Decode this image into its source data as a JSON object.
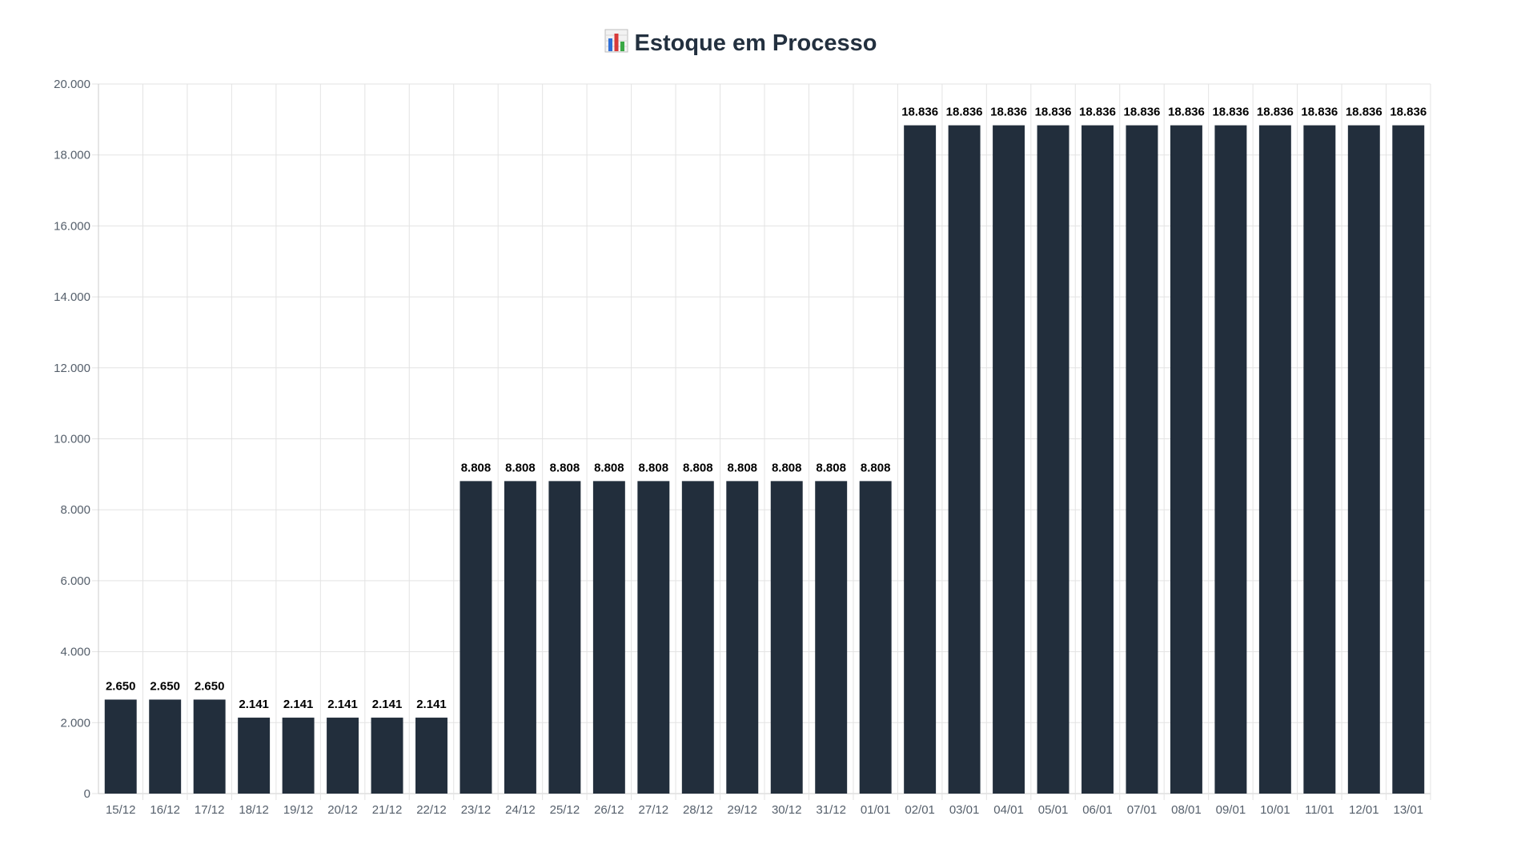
{
  "chart_data": {
    "type": "bar",
    "title": "Estoque em Processo",
    "title_icon": "bar-chart-icon",
    "categories": [
      "15/12",
      "16/12",
      "17/12",
      "18/12",
      "19/12",
      "20/12",
      "21/12",
      "22/12",
      "23/12",
      "24/12",
      "25/12",
      "26/12",
      "27/12",
      "28/12",
      "29/12",
      "30/12",
      "31/12",
      "01/01",
      "02/01",
      "03/01",
      "04/01",
      "05/01",
      "06/01",
      "07/01",
      "08/01",
      "09/01",
      "10/01",
      "11/01",
      "12/01",
      "13/01"
    ],
    "values": [
      2650,
      2650,
      2650,
      2141,
      2141,
      2141,
      2141,
      2141,
      8808,
      8808,
      8808,
      8808,
      8808,
      8808,
      8808,
      8808,
      8808,
      8808,
      18836,
      18836,
      18836,
      18836,
      18836,
      18836,
      18836,
      18836,
      18836,
      18836,
      18836,
      18836
    ],
    "value_labels": [
      "2.650",
      "2.650",
      "2.650",
      "2.141",
      "2.141",
      "2.141",
      "2.141",
      "2.141",
      "8.808",
      "8.808",
      "8.808",
      "8.808",
      "8.808",
      "8.808",
      "8.808",
      "8.808",
      "8.808",
      "8.808",
      "18.836",
      "18.836",
      "18.836",
      "18.836",
      "18.836",
      "18.836",
      "18.836",
      "18.836",
      "18.836",
      "18.836",
      "18.836",
      "18.836"
    ],
    "yticks": [
      0,
      2000,
      4000,
      6000,
      8000,
      10000,
      12000,
      14000,
      16000,
      18000,
      20000
    ],
    "ytick_labels": [
      "0",
      "2.000",
      "4.000",
      "6.000",
      "8.000",
      "10.000",
      "12.000",
      "14.000",
      "16.000",
      "18.000",
      "20.000"
    ],
    "ylim": [
      0,
      20000
    ],
    "xlabel": "",
    "ylabel": "",
    "grid": true,
    "colors": {
      "bar": "#222e3c",
      "grid": "#e3e3e3",
      "axis": "#cccccc",
      "title": "#23303f"
    }
  }
}
